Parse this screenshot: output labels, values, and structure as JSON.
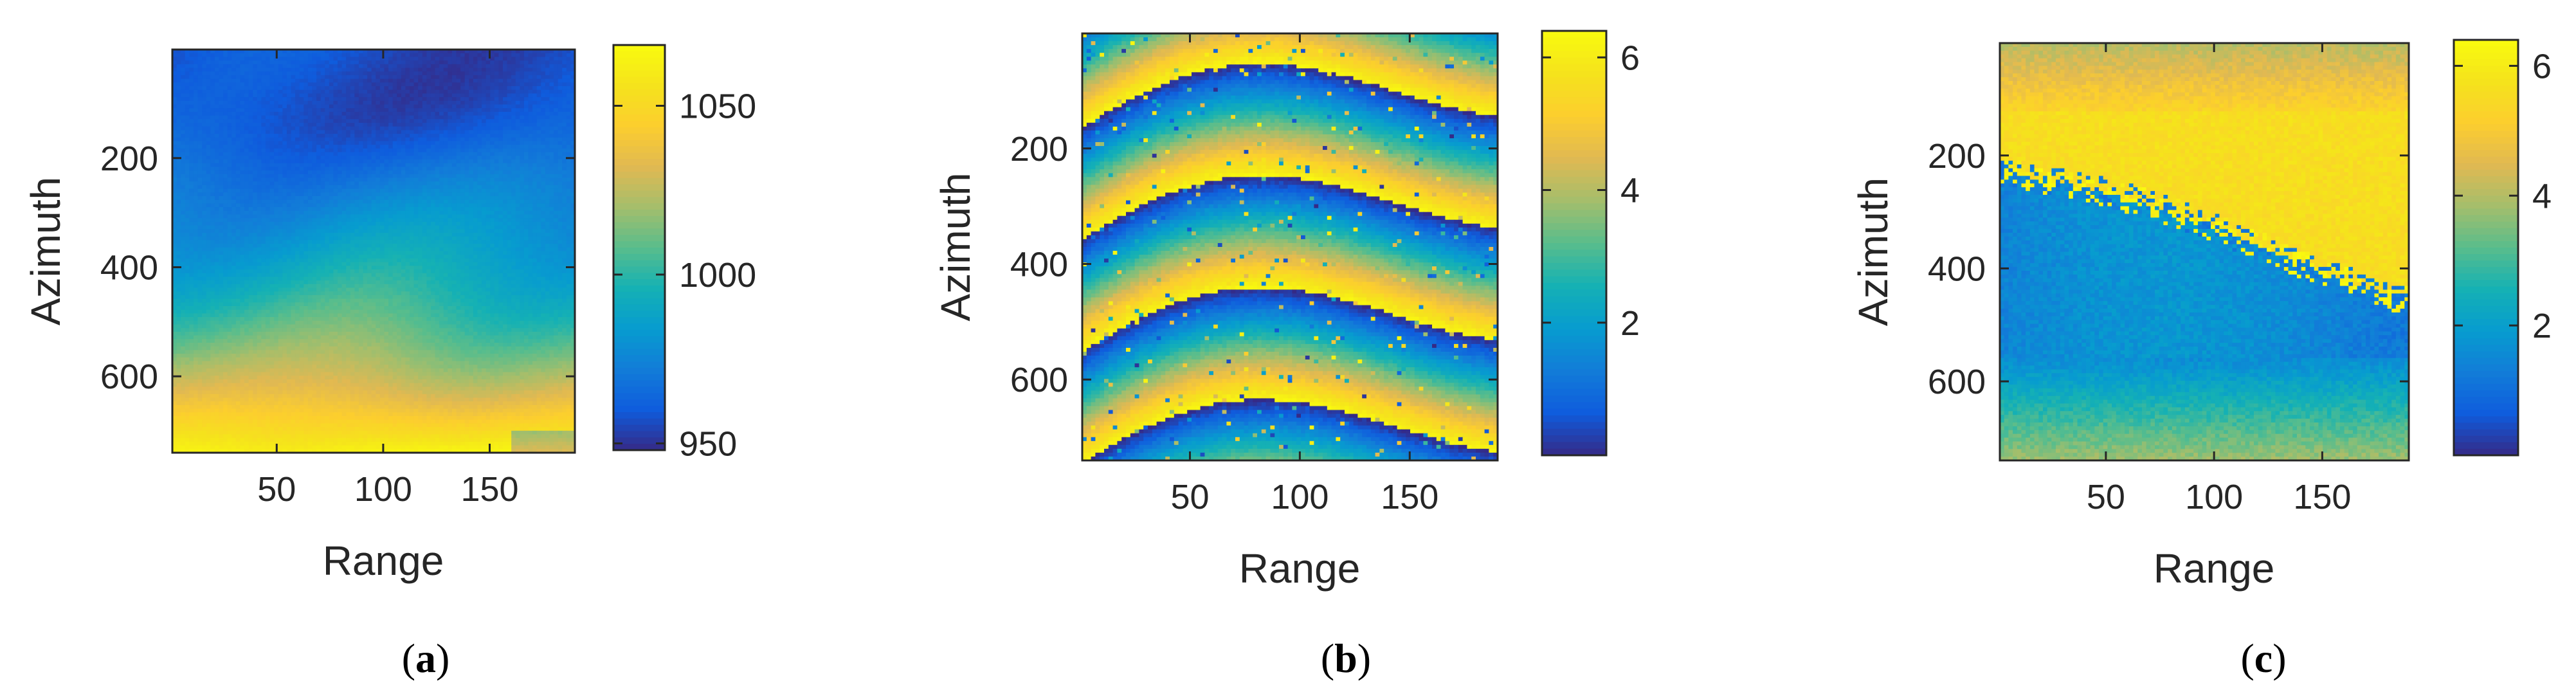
{
  "chart_data": [
    {
      "type": "heatmap",
      "panel": "a",
      "caption": {
        "open": "(",
        "letter": "a",
        "close": ")"
      },
      "xlabel": "Range",
      "ylabel": "Azimuth",
      "xlim": [
        1,
        190
      ],
      "ylim": [
        1,
        740
      ],
      "xticks": [
        50,
        100,
        150
      ],
      "yticks": [
        200,
        400,
        600
      ],
      "y_reversed": true,
      "colorbar": {
        "min": 948,
        "max": 1068,
        "ticks": [
          950,
          1000,
          1050
        ]
      },
      "colormap": "parula",
      "field": "smooth gradient: low (~960-990) in the top rows, rising toward the bottom (~1040-1065), brightest near range 100 at the bottom"
    },
    {
      "type": "heatmap",
      "panel": "b",
      "caption": {
        "open": "(",
        "letter": "b",
        "close": ")"
      },
      "xlabel": "Range",
      "ylabel": "Azimuth",
      "xlim": [
        1,
        190
      ],
      "ylim": [
        1,
        740
      ],
      "xticks": [
        50,
        100,
        150
      ],
      "yticks": [
        200,
        400,
        600
      ],
      "y_reversed": true,
      "colorbar": {
        "min": 0,
        "max": 6.4,
        "ticks": [
          2,
          4,
          6
        ]
      },
      "colormap": "parula",
      "field": "wrapped interferometric phase (0 to 2π) showing ~4 curved fringes running from left to right"
    },
    {
      "type": "heatmap",
      "panel": "c",
      "caption": {
        "open": "(",
        "letter": "c",
        "close": ")"
      },
      "xlabel": "Range",
      "ylabel": "Azimuth",
      "xlim": [
        1,
        190
      ],
      "ylim": [
        1,
        740
      ],
      "xticks": [
        50,
        100,
        150
      ],
      "yticks": [
        200,
        400,
        600
      ],
      "y_reversed": true,
      "colorbar": {
        "min": 0,
        "max": 6.4,
        "ticks": [
          2,
          4,
          6
        ]
      },
      "colormap": "parula",
      "field": "wrapped phase with a single fringe: high (~5.5) upper-right region, low (~1) middle-left, green (~3.5) at top and bottom"
    }
  ]
}
